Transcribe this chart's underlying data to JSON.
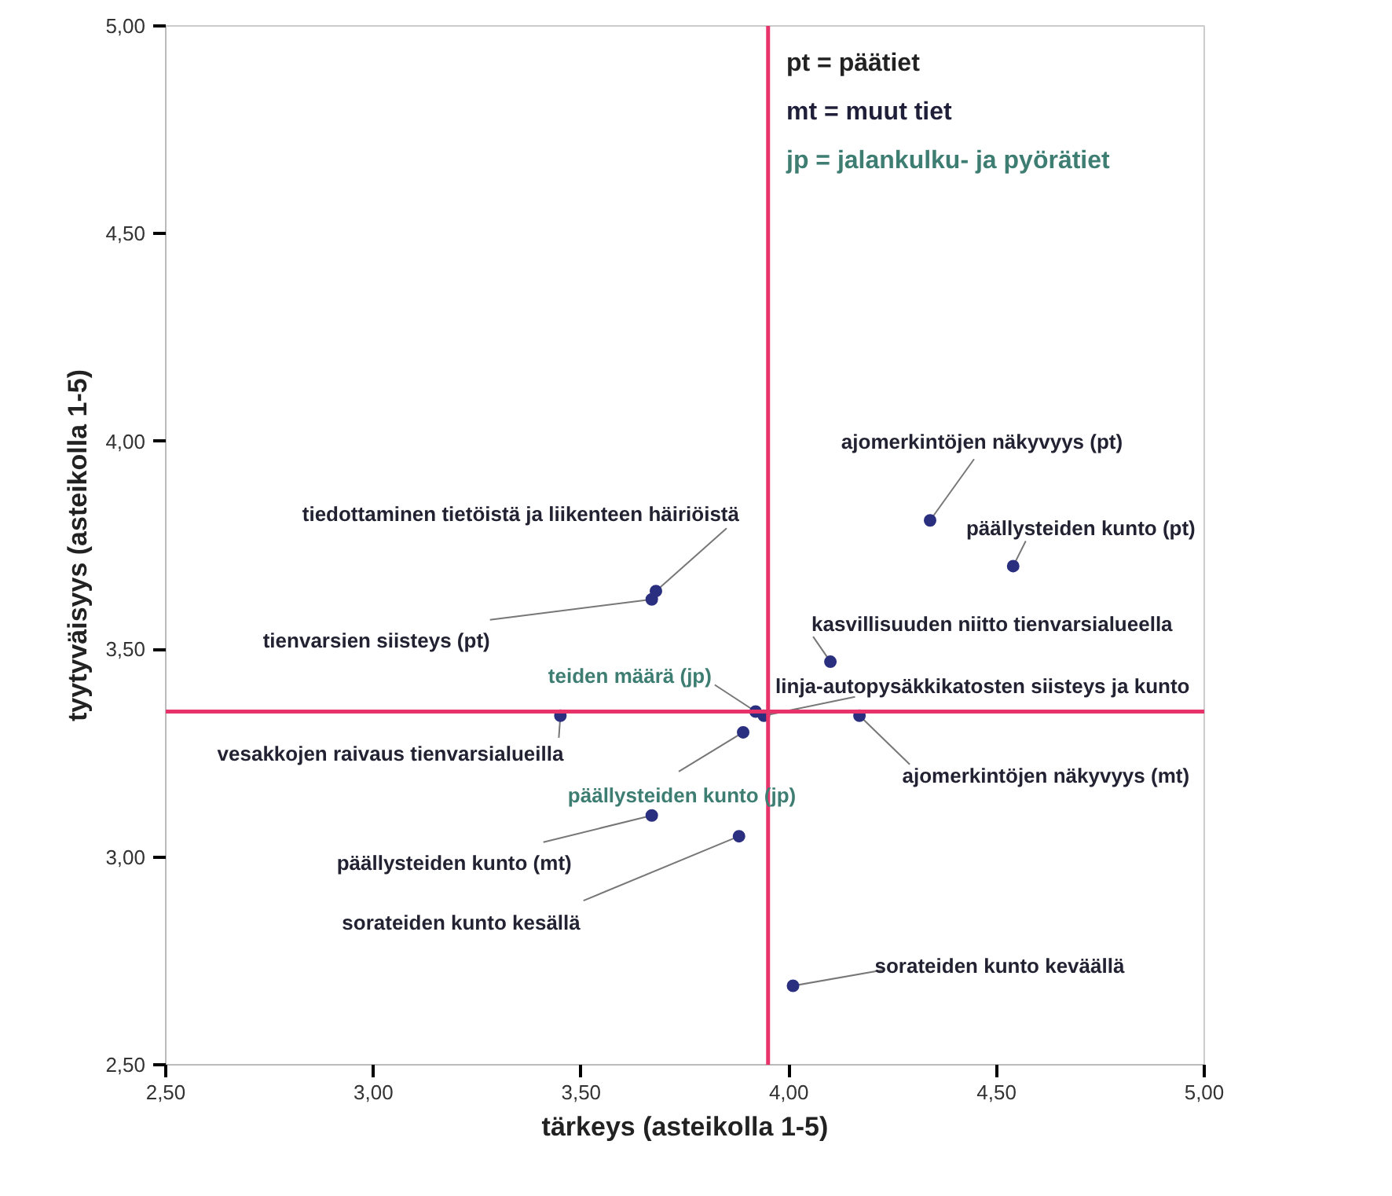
{
  "chart_data": {
    "type": "scatter",
    "xlabel": "tärkeys (asteikolla 1-5)",
    "ylabel": "tyytyväisyys (asteikolla 1-5)",
    "xlim": [
      2.5,
      5.0
    ],
    "ylim": [
      2.5,
      5.0
    ],
    "xticks": [
      {
        "value": 2.5,
        "label": "2,50"
      },
      {
        "value": 3.0,
        "label": "3,00"
      },
      {
        "value": 3.5,
        "label": "3,50"
      },
      {
        "value": 4.0,
        "label": "4,00"
      },
      {
        "value": 4.5,
        "label": "4,50"
      },
      {
        "value": 5.0,
        "label": "5,00"
      }
    ],
    "yticks": [
      {
        "value": 2.5,
        "label": "2,50"
      },
      {
        "value": 3.0,
        "label": "3,00"
      },
      {
        "value": 3.5,
        "label": "3,50"
      },
      {
        "value": 4.0,
        "label": "4,00"
      },
      {
        "value": 4.5,
        "label": "4,50"
      },
      {
        "value": 5.0,
        "label": "5,00"
      }
    ],
    "grid": false,
    "marker": "circle",
    "series": [
      {
        "color": "#2b2f7f",
        "x": [
          4.34,
          4.54,
          3.68,
          3.67,
          4.1,
          3.94,
          3.45,
          4.17,
          3.67,
          3.88,
          4.01
        ],
        "values": [
          3.81,
          3.7,
          3.64,
          3.62,
          3.47,
          3.34,
          3.34,
          3.34,
          3.1,
          3.05,
          2.69
        ],
        "value_labels": [
          "ajomerkintöjen näkyvyys (pt)",
          "päällysteiden kunto (pt)",
          "tiedottaminen tietöistä ja liikenteen häiriöistä",
          "tienvarsien siisteys (pt)",
          "kasvillisuuden niitto tienvarsialueella",
          "linja-autopysäkkikatosten siisteys ja kunto",
          "vesakkojen raivaus tienvarsialueilla",
          "ajomerkintöjen näkyvyys (mt)",
          "päällysteiden kunto (mt)",
          "sorateiden kunto kesällä",
          "sorateiden kunto keväällä"
        ]
      },
      {
        "color": "#2b2f7f",
        "x": [
          3.92,
          3.89
        ],
        "values": [
          3.35,
          3.3
        ],
        "value_labels": [
          "teiden määrä (jp)",
          "päällysteiden kunto (jp)"
        ]
      }
    ],
    "ref_lines": [
      {
        "axis": "x",
        "value": 3.95,
        "color": "#e8336a"
      },
      {
        "axis": "y",
        "value": 3.35,
        "color": "#e8336a"
      }
    ],
    "annotations": [
      "pt = päätiet",
      "mt = muut tiet",
      "jp = jalankulku- ja pyörätiet"
    ]
  }
}
